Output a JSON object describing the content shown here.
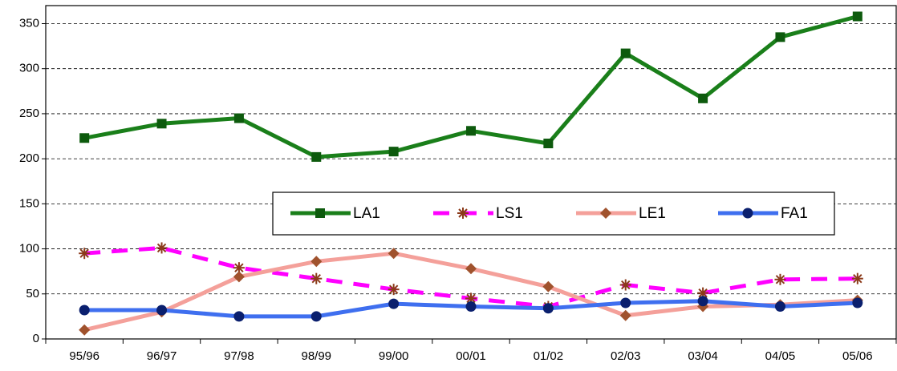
{
  "chart_data": {
    "type": "line",
    "categories": [
      "95/96",
      "96/97",
      "97/98",
      "98/99",
      "99/00",
      "00/01",
      "01/02",
      "02/03",
      "03/04",
      "04/05",
      "05/06"
    ],
    "series": [
      {
        "name": "LA1",
        "color": "#1a7f1a",
        "marker": "square",
        "marker_color": "#0d5a0d",
        "dashed": false,
        "values": [
          223,
          239,
          245,
          202,
          208,
          231,
          217,
          317,
          267,
          335,
          358
        ]
      },
      {
        "name": "LS1",
        "color": "#ff00ff",
        "marker": "asterisk",
        "marker_color": "#8b3a1a",
        "dashed": true,
        "values": [
          95,
          101,
          79,
          67,
          55,
          45,
          36,
          60,
          51,
          66,
          67
        ]
      },
      {
        "name": "LE1",
        "color": "#f4a09a",
        "marker": "diamond",
        "marker_color": "#a0522d",
        "dashed": false,
        "values": [
          10,
          30,
          69,
          86,
          95,
          78,
          58,
          26,
          36,
          38,
          43
        ]
      },
      {
        "name": "FA1",
        "color": "#3f6fef",
        "marker": "circle",
        "marker_color": "#0a1f6e",
        "dashed": false,
        "values": [
          32,
          32,
          25,
          25,
          39,
          36,
          34,
          40,
          42,
          36,
          40
        ]
      }
    ],
    "ylim": [
      0,
      370
    ],
    "yticks": [
      0,
      50,
      100,
      150,
      200,
      250,
      300,
      350
    ],
    "grid": true,
    "legend": "center"
  }
}
